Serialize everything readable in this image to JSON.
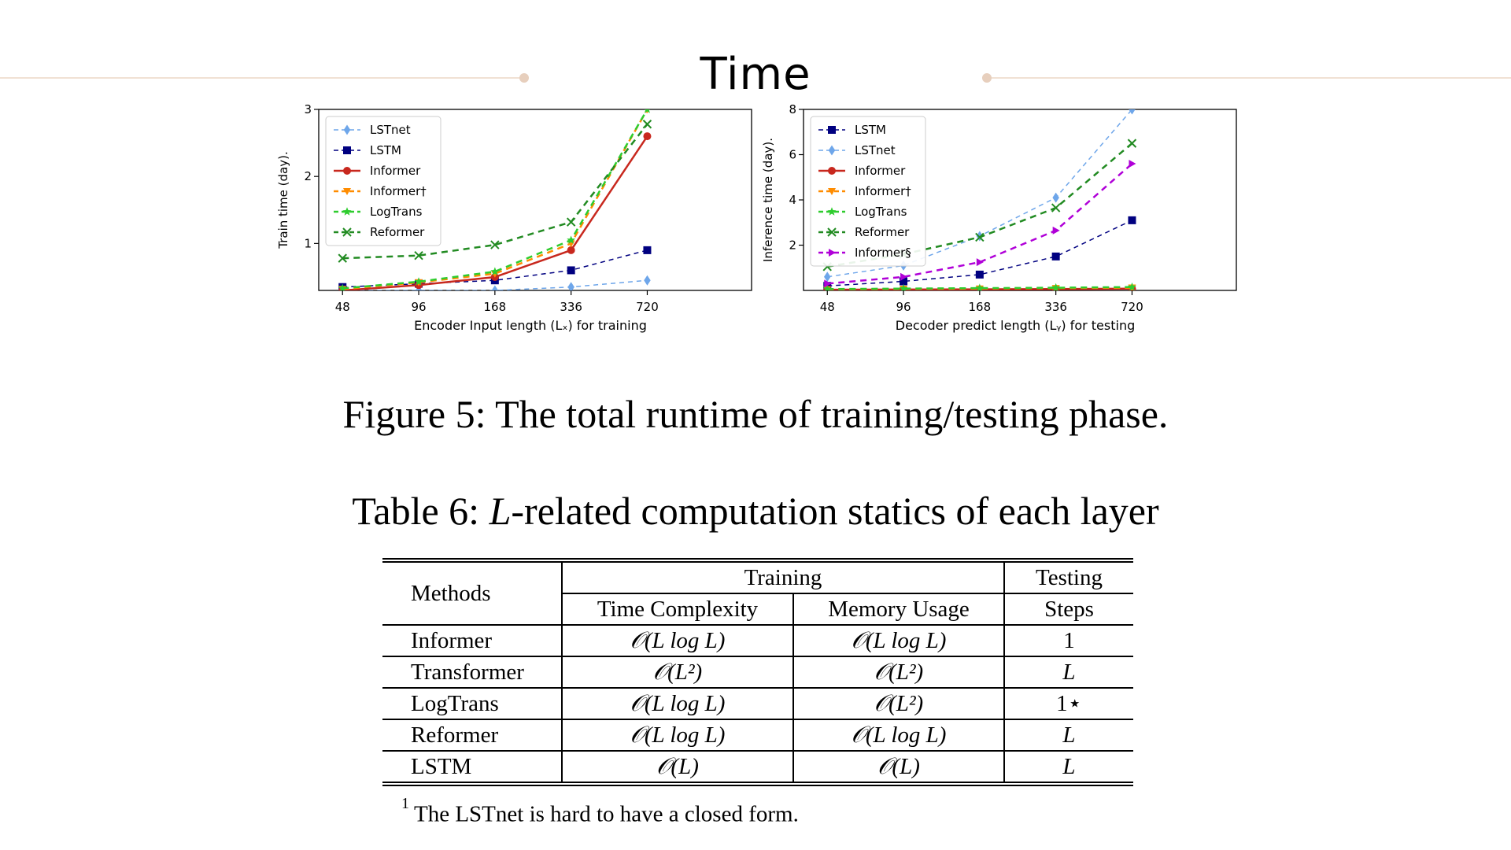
{
  "slide": {
    "title": "Time"
  },
  "colors": {
    "rule": "#f1e1d4",
    "dot": "#e7cfbd"
  },
  "figure_caption": "Figure 5: The total runtime of training/testing phase.",
  "table_caption": {
    "prefix": "Table 6: ",
    "var": "L",
    "suffix": "-related computation statics of each layer"
  },
  "table": {
    "methods_header": "Methods",
    "training_header": "Training",
    "testing_header": "Testing",
    "time_header": "Time Complexity",
    "memory_header": "Memory Usage",
    "steps_header": "Steps",
    "rows": [
      {
        "method": "Informer",
        "time": "𝒪(L log L)",
        "memory": "𝒪(L log L)",
        "steps": "1"
      },
      {
        "method": "Transformer",
        "time": "𝒪(L²)",
        "memory": "𝒪(L²)",
        "steps": "L"
      },
      {
        "method": "LogTrans",
        "time": "𝒪(L log L)",
        "memory": "𝒪(L²)",
        "steps": "1⋆"
      },
      {
        "method": "Reformer",
        "time": "𝒪(L log L)",
        "memory": "𝒪(L log L)",
        "steps": "L"
      },
      {
        "method": "LSTM",
        "time": "𝒪(L)",
        "memory": "𝒪(L)",
        "steps": "L"
      }
    ]
  },
  "footnote": {
    "mark": "1",
    "text": "The LSTnet is hard to have a closed form."
  },
  "chart_data": [
    {
      "type": "line",
      "xlabel": "Encoder Input length (Lₓ) for training",
      "ylabel": "Train time (day).",
      "categories": [
        "48",
        "96",
        "168",
        "336",
        "720"
      ],
      "ylim": [
        0.3,
        3
      ],
      "yticks": [
        1,
        2,
        3
      ],
      "legend": "top-left",
      "series": [
        {
          "name": "LSTnet",
          "color": "#6ea6ea",
          "marker": "diamond",
          "dash": "6,5",
          "width": 1.5,
          "values": [
            0.3,
            0.3,
            0.3,
            0.35,
            0.45
          ]
        },
        {
          "name": "LSTM",
          "color": "#000080",
          "marker": "square",
          "dash": "6,5",
          "width": 1.5,
          "values": [
            0.35,
            0.4,
            0.45,
            0.6,
            0.9
          ]
        },
        {
          "name": "Informer",
          "color": "#c8281e",
          "marker": "circle",
          "dash": "",
          "width": 2.5,
          "values": [
            0.3,
            0.38,
            0.5,
            0.9,
            2.6
          ]
        },
        {
          "name": "Informer†",
          "color": "#ff8c00",
          "marker": "triangle-down",
          "dash": "8,6",
          "width": 2.5,
          "values": [
            0.32,
            0.42,
            0.55,
            1.0,
            3.0
          ]
        },
        {
          "name": "LogTrans",
          "color": "#2ecc2e",
          "marker": "star",
          "dash": "8,6",
          "width": 2.5,
          "values": [
            0.33,
            0.43,
            0.58,
            1.05,
            3.0
          ]
        },
        {
          "name": "Reformer",
          "color": "#228b22",
          "marker": "x",
          "dash": "8,6",
          "width": 2.5,
          "values": [
            0.78,
            0.82,
            0.98,
            1.32,
            2.78
          ]
        }
      ]
    },
    {
      "type": "line",
      "xlabel": "Decoder predict length (Lᵧ) for testing",
      "ylabel": "Inference time (day).",
      "categories": [
        "48",
        "96",
        "168",
        "336",
        "720"
      ],
      "ylim": [
        0,
        8
      ],
      "yticks": [
        2,
        4,
        6,
        8
      ],
      "legend": "top-left",
      "series": [
        {
          "name": "LSTM",
          "color": "#000080",
          "marker": "square",
          "dash": "6,5",
          "width": 1.5,
          "values": [
            0.2,
            0.4,
            0.7,
            1.5,
            3.1
          ]
        },
        {
          "name": "LSTnet",
          "color": "#6ea6ea",
          "marker": "diamond",
          "dash": "6,5",
          "width": 1.5,
          "values": [
            0.6,
            1.1,
            2.4,
            4.1,
            8.0
          ]
        },
        {
          "name": "Informer",
          "color": "#c8281e",
          "marker": "circle",
          "dash": "",
          "width": 2.5,
          "values": [
            0.03,
            0.04,
            0.05,
            0.06,
            0.08
          ]
        },
        {
          "name": "Informer†",
          "color": "#ff8c00",
          "marker": "triangle-down",
          "dash": "8,6",
          "width": 2.5,
          "values": [
            0.05,
            0.07,
            0.08,
            0.1,
            0.12
          ]
        },
        {
          "name": "LogTrans",
          "color": "#2ecc2e",
          "marker": "star",
          "dash": "8,6",
          "width": 2.5,
          "values": [
            0.06,
            0.08,
            0.1,
            0.12,
            0.15
          ]
        },
        {
          "name": "Reformer",
          "color": "#228b22",
          "marker": "x",
          "dash": "8,6",
          "width": 2.5,
          "values": [
            1.05,
            1.6,
            2.35,
            3.65,
            6.5
          ]
        },
        {
          "name": "Informer§",
          "color": "#b000d8",
          "marker": "triangle-right",
          "dash": "8,6",
          "width": 2.5,
          "values": [
            0.3,
            0.6,
            1.25,
            2.65,
            5.6
          ]
        }
      ]
    }
  ]
}
